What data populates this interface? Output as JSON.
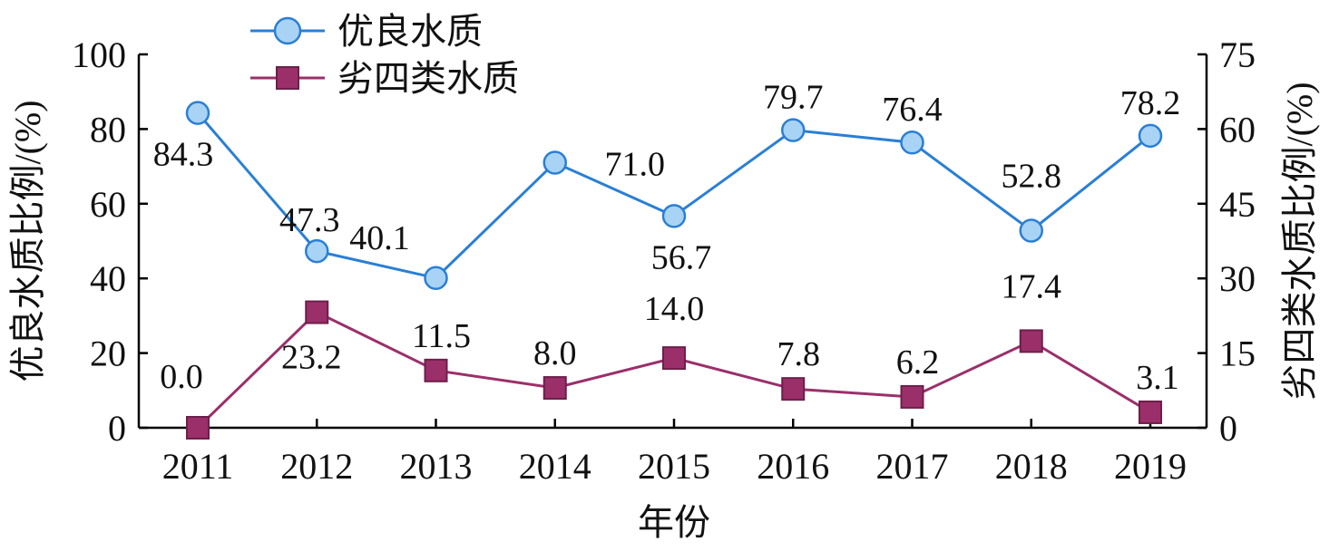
{
  "chart_data": {
    "type": "line",
    "title": "",
    "xlabel": "年份",
    "ylabel_left": "优良水质比例/(%)",
    "ylabel_right": "劣四类水质比例/(%)",
    "categories": [
      "2011",
      "2012",
      "2013",
      "2014",
      "2015",
      "2016",
      "2017",
      "2018",
      "2019"
    ],
    "ylim_left": [
      0,
      100
    ],
    "yticks_left": [
      "0",
      "20",
      "40",
      "60",
      "80",
      "100"
    ],
    "ylim_right": [
      0,
      75
    ],
    "yticks_right": [
      "0",
      "15",
      "30",
      "45",
      "60",
      "75"
    ],
    "grid": false,
    "legend_position": "top-left",
    "series": [
      {
        "name": "优良水质",
        "axis": "left",
        "marker": "circle",
        "color": "#2a7fd4",
        "marker_fill": "#a9d3f5",
        "values": [
          84.3,
          47.3,
          40.1,
          71.0,
          56.7,
          79.7,
          76.4,
          52.8,
          78.2
        ],
        "labels": [
          "84.3",
          "47.3",
          "40.1",
          "71.0",
          "56.7",
          "79.7",
          "76.4",
          "52.8",
          "78.2"
        ]
      },
      {
        "name": "劣四类水质",
        "axis": "right",
        "marker": "square",
        "color": "#9b2f6a",
        "marker_fill": "#9b2f6a",
        "values": [
          0.0,
          23.2,
          11.5,
          8.0,
          14.0,
          7.8,
          6.2,
          17.4,
          3.1
        ],
        "labels": [
          "0.0",
          "23.2",
          "11.5",
          "8.0",
          "14.0",
          "7.8",
          "6.2",
          "17.4",
          "3.1"
        ]
      }
    ]
  }
}
